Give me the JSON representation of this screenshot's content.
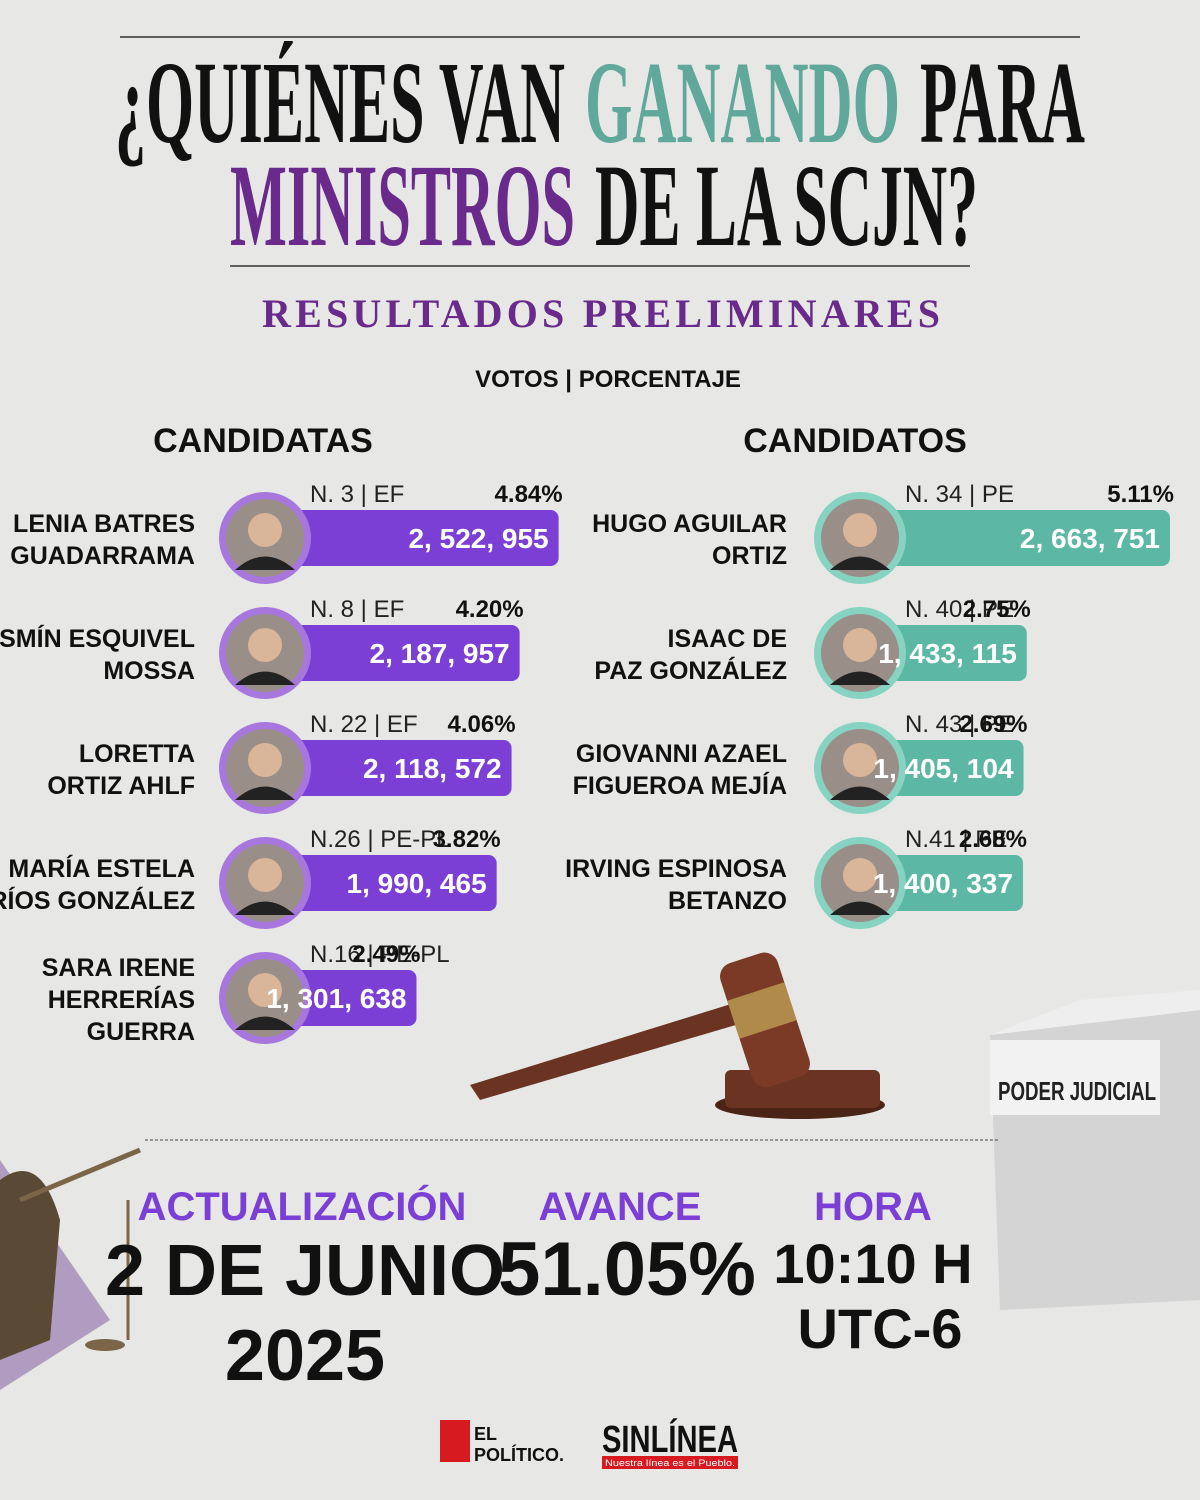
{
  "title": {
    "line1": [
      "¿QUIÉNES VAN",
      "GANANDO",
      "PARA"
    ],
    "line2": [
      "MINISTROS",
      "DE LA SCJN?"
    ]
  },
  "subtitle": "RESULTADOS PRELIMINARES",
  "legend": "VOTOS | PORCENTAJE",
  "groups": [
    {
      "heading": "CANDIDATAS",
      "color": "#7b3fd6",
      "ring": "#a877dd",
      "candidates": [
        {
          "name": [
            "LENIA BATRES",
            "GUADARRAMA"
          ],
          "tag": "N. 3 | EF",
          "votes": 2522955,
          "votes_label": "2, 522, 955",
          "percent": "4.84%"
        },
        {
          "name": [
            "YASMÍN ESQUIVEL",
            "MOSSA"
          ],
          "tag": "N. 8 | EF",
          "votes": 2187957,
          "votes_label": "2, 187, 957",
          "percent": "4.20%"
        },
        {
          "name": [
            "LORETTA",
            "ORTIZ AHLF"
          ],
          "tag": "N. 22 | EF",
          "votes": 2118572,
          "votes_label": "2, 118, 572",
          "percent": "4.06%"
        },
        {
          "name": [
            "MARÍA ESTELA",
            "RÍOS GONZÁLEZ"
          ],
          "tag": "N.26 | PE-PL",
          "votes": 1990465,
          "votes_label": "1, 990, 465",
          "percent": "3.82%"
        },
        {
          "name": [
            "SARA IRENE",
            "HERRERÍAS",
            "GUERRA"
          ],
          "tag": "N.16 | PE-PL",
          "votes": 1301638,
          "votes_label": "1, 301, 638",
          "percent": "2.49%"
        }
      ]
    },
    {
      "heading": "CANDIDATOS",
      "color": "#5cb8a5",
      "ring": "#86d3c1",
      "candidates": [
        {
          "name": [
            "HUGO AGUILAR",
            "ORTIZ"
          ],
          "tag": "N. 34 | PE",
          "votes": 2663751,
          "votes_label": "2, 663, 751",
          "percent": "5.11%"
        },
        {
          "name": [
            "ISAAC DE",
            "PAZ GONZÁLEZ"
          ],
          "tag": "N. 40 | PE",
          "votes": 1433115,
          "votes_label": "1, 433, 115",
          "percent": "2.75%"
        },
        {
          "name": [
            "GIOVANNI AZAEL",
            "FIGUEROA MEJÍA"
          ],
          "tag": "N. 43 | PE",
          "votes": 1405104,
          "votes_label": "1, 405, 104",
          "percent": "2.69%"
        },
        {
          "name": [
            "IRVING ESPINOSA",
            "BETANZO"
          ],
          "tag": "N.41 | PE",
          "votes": 1400337,
          "votes_label": "1, 400, 337",
          "percent": "2.68%"
        }
      ]
    }
  ],
  "footer": {
    "update_label": "ACTUALIZACIÓN",
    "update_date": [
      "2 DE JUNIO",
      "2025"
    ],
    "progress_label": "AVANCE",
    "progress": "51.05%",
    "time_label": "HORA",
    "time": [
      "10:10 H",
      "UTC-6"
    ]
  },
  "ballot_box": "PODER JUDICIAL",
  "logos": {
    "el_politico": [
      "EL",
      "POLÍTICO."
    ],
    "sinlinea": "SINLÍNEA",
    "sinlinea_tagline": "Nuestra línea es el Pueblo."
  }
}
